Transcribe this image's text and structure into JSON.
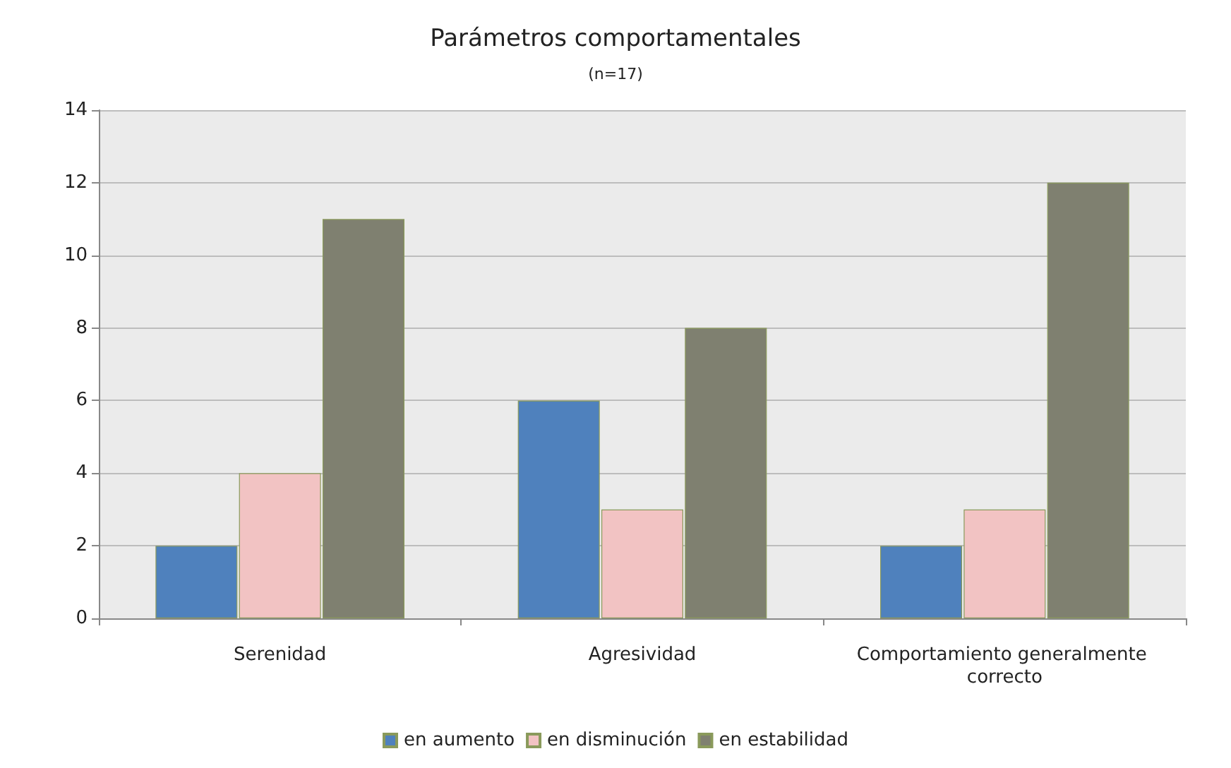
{
  "chart_data": {
    "type": "bar",
    "title": "Parámetros comportamentales",
    "subtitle": "(n=17)",
    "categories": [
      "Serenidad",
      "Agresividad",
      "Comportamiento generalmente correcto"
    ],
    "series": [
      {
        "name": "en aumento",
        "color": "#4f81bd",
        "values": [
          2,
          6,
          2
        ]
      },
      {
        "name": "en disminución",
        "color": "#f2c3c3",
        "values": [
          4,
          3,
          3
        ]
      },
      {
        "name": "en estabilidad",
        "color": "#7f8070",
        "values": [
          11,
          8,
          12
        ]
      }
    ],
    "ylim": [
      0,
      14
    ],
    "yticks": [
      0,
      2,
      4,
      6,
      8,
      10,
      12,
      14
    ],
    "grid": "y",
    "legend": "bottom"
  }
}
